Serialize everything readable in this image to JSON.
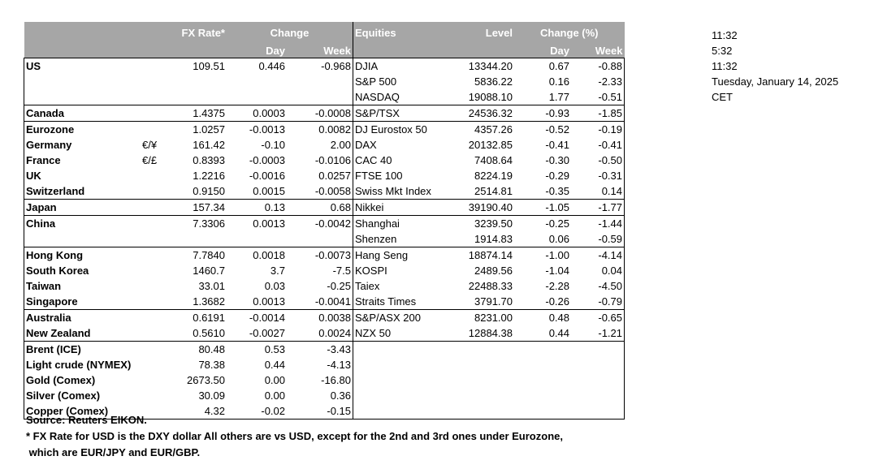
{
  "headers": {
    "fx_rate": "FX Rate*",
    "change": "Change",
    "equities": "Equities",
    "level": "Level",
    "change_pct": "Change (%)",
    "day": "Day",
    "week": "Week"
  },
  "rows": [
    {
      "name": "US",
      "sym": "",
      "fx": "109.51",
      "fx_day": "0.446",
      "fx_week": "-0.968",
      "eq": "DJIA",
      "level": "13344.20",
      "eq_day": "0.67",
      "eq_week": "-0.88"
    },
    {
      "name": "",
      "sym": "",
      "fx": "",
      "fx_day": "",
      "fx_week": "",
      "eq": "S&P 500",
      "level": "5836.22",
      "eq_day": "0.16",
      "eq_week": "-2.33"
    },
    {
      "name": "",
      "sym": "",
      "fx": "",
      "fx_day": "",
      "fx_week": "",
      "eq": "NASDAQ",
      "level": "19088.10",
      "eq_day": "1.77",
      "eq_week": "-0.51"
    },
    {
      "name": "Canada",
      "sym": "",
      "fx": "1.4375",
      "fx_day": "0.0003",
      "fx_week": "-0.0008",
      "eq": "S&P/TSX",
      "level": "24536.32",
      "eq_day": "-0.93",
      "eq_week": "-1.85"
    },
    {
      "name": "Eurozone",
      "sym": "",
      "fx": "1.0257",
      "fx_day": "-0.0013",
      "fx_week": "0.0082",
      "eq": "DJ Eurostox 50",
      "level": "4357.26",
      "eq_day": "-0.52",
      "eq_week": "-0.19"
    },
    {
      "name": "Germany",
      "sym": "€/¥",
      "fx": "161.42",
      "fx_day": "-0.10",
      "fx_week": "2.00",
      "eq": "DAX",
      "level": "20132.85",
      "eq_day": "-0.41",
      "eq_week": "-0.41"
    },
    {
      "name": "France",
      "sym": "€/£",
      "fx": "0.8393",
      "fx_day": "-0.0003",
      "fx_week": "-0.0106",
      "eq": "CAC 40",
      "level": "7408.64",
      "eq_day": "-0.30",
      "eq_week": "-0.50"
    },
    {
      "name": "UK",
      "sym": "",
      "fx": "1.2216",
      "fx_day": "-0.0016",
      "fx_week": "0.0257",
      "eq": "FTSE 100",
      "level": "8224.19",
      "eq_day": "-0.29",
      "eq_week": "-0.31"
    },
    {
      "name": "Switzerland",
      "sym": "",
      "fx": "0.9150",
      "fx_day": "0.0015",
      "fx_week": "-0.0058",
      "eq": "Swiss Mkt Index",
      "level": "2514.81",
      "eq_day": "-0.35",
      "eq_week": "0.14"
    },
    {
      "name": "Japan",
      "sym": "",
      "fx": "157.34",
      "fx_day": "0.13",
      "fx_week": "0.68",
      "eq": "Nikkei",
      "level": "39190.40",
      "eq_day": "-1.05",
      "eq_week": "-1.77"
    },
    {
      "name": "China",
      "sym": "",
      "fx": "7.3306",
      "fx_day": "0.0013",
      "fx_week": "-0.0042",
      "eq": "Shanghai",
      "level": "3239.50",
      "eq_day": "-0.25",
      "eq_week": "-1.44"
    },
    {
      "name": "",
      "sym": "",
      "fx": "",
      "fx_day": "",
      "fx_week": "",
      "eq": "Shenzen",
      "level": "1914.83",
      "eq_day": "0.06",
      "eq_week": "-0.59"
    },
    {
      "name": "Hong Kong",
      "sym": "",
      "fx": "7.7840",
      "fx_day": "0.0018",
      "fx_week": "-0.0073",
      "eq": "Hang Seng",
      "level": "18874.14",
      "eq_day": "-1.00",
      "eq_week": "-4.14"
    },
    {
      "name": "South Korea",
      "sym": "",
      "fx": "1460.7",
      "fx_day": "3.7",
      "fx_week": "-7.5",
      "eq": "KOSPI",
      "level": "2489.56",
      "eq_day": "-1.04",
      "eq_week": "0.04"
    },
    {
      "name": "Taiwan",
      "sym": "",
      "fx": "33.01",
      "fx_day": "0.03",
      "fx_week": "-0.25",
      "eq": "Taiex",
      "level": "22488.33",
      "eq_day": "-2.28",
      "eq_week": "-4.50"
    },
    {
      "name": "Singapore",
      "sym": "",
      "fx": "1.3682",
      "fx_day": "0.0013",
      "fx_week": "-0.0041",
      "eq": "Straits Times",
      "level": "3791.70",
      "eq_day": "-0.26",
      "eq_week": "-0.79"
    },
    {
      "name": "Australia",
      "sym": "",
      "fx": "0.6191",
      "fx_day": "-0.0014",
      "fx_week": "0.0038",
      "eq": "S&P/ASX  200",
      "level": "8231.00",
      "eq_day": "0.48",
      "eq_week": "-0.65"
    },
    {
      "name": "New Zealand",
      "sym": "",
      "fx": "0.5610",
      "fx_day": "-0.0027",
      "fx_week": "0.0024",
      "eq": "NZX 50",
      "level": "12884.38",
      "eq_day": "0.44",
      "eq_week": "-1.21"
    },
    {
      "name": "Brent (ICE)",
      "sym": "",
      "fx": "80.48",
      "fx_day": "0.53",
      "fx_week": "-3.43",
      "eq": "",
      "level": "",
      "eq_day": "",
      "eq_week": ""
    },
    {
      "name": "Light crude (NYMEX)",
      "sym": "",
      "fx": "78.38",
      "fx_day": "0.44",
      "fx_week": "-4.13",
      "eq": "",
      "level": "",
      "eq_day": "",
      "eq_week": ""
    },
    {
      "name": "Gold (Comex)",
      "sym": "",
      "fx": "2673.50",
      "fx_day": "0.00",
      "fx_week": "-16.80",
      "eq": "",
      "level": "",
      "eq_day": "",
      "eq_week": ""
    },
    {
      "name": "Silver (Comex)",
      "sym": "",
      "fx": "30.09",
      "fx_day": "0.00",
      "fx_week": "0.36",
      "eq": "",
      "level": "",
      "eq_day": "",
      "eq_week": ""
    },
    {
      "name": "Copper (Comex)",
      "sym": "",
      "fx": "4.32",
      "fx_day": "-0.02",
      "fx_week": "-0.15",
      "eq": "",
      "level": "",
      "eq_day": "",
      "eq_week": ""
    }
  ],
  "notes": {
    "source": "Source:  Reuters EIKON.",
    "footnote1": "* FX Rate for USD is the DXY dollar  All others are vs USD, except for the 2nd and 3rd ones under Eurozone,",
    "footnote2": " which are EUR/JPY and EUR/GBP."
  },
  "side": [
    "11:32",
    "5:32",
    "11:32",
    "Tuesday, January 14, 2025",
    "CET"
  ]
}
